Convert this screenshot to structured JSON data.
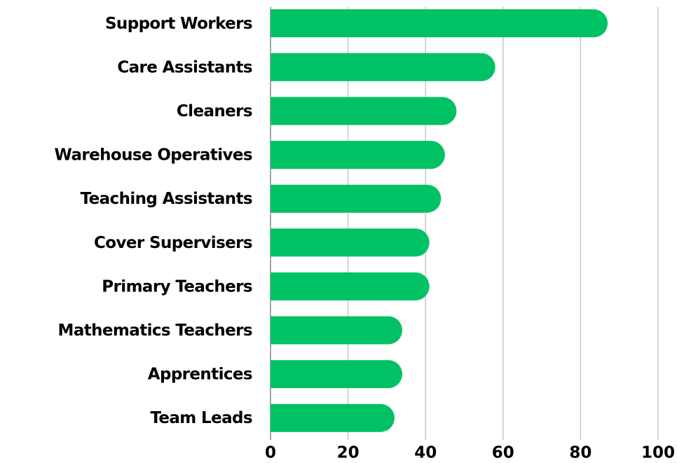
{
  "chart_data": {
    "type": "bar",
    "orientation": "horizontal",
    "categories": [
      "Support Workers",
      "Care Assistants",
      "Cleaners",
      "Warehouse Operatives",
      "Teaching Assistants",
      "Cover Supervisers",
      "Primary Teachers",
      "Mathematics Teachers",
      "Apprentices",
      "Team Leads"
    ],
    "values": [
      87,
      58,
      48,
      45,
      44,
      41,
      41,
      34,
      34,
      32
    ],
    "color": "#00c264",
    "xlim": [
      0,
      100
    ],
    "xticks": [
      0,
      20,
      40,
      60,
      80,
      100
    ],
    "grid": true
  }
}
